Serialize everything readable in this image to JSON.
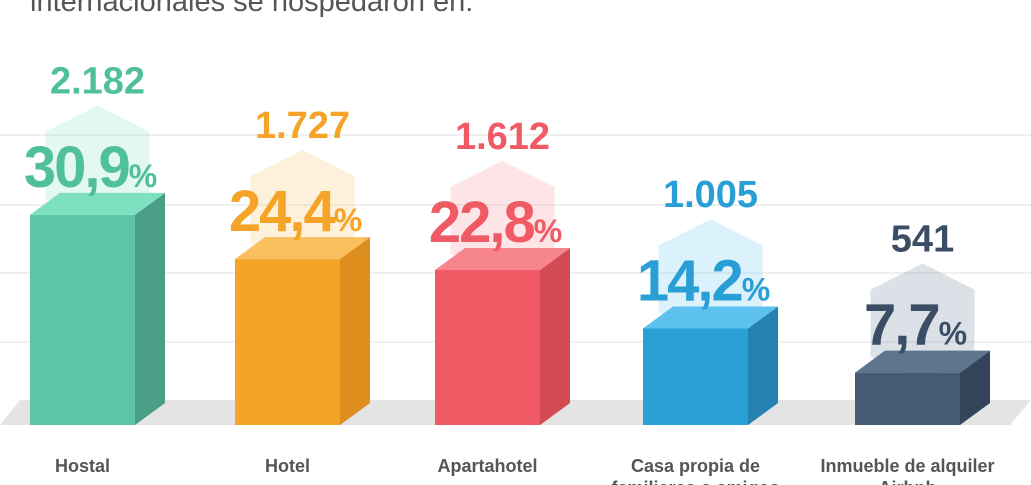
{
  "chart_data": {
    "type": "bar3d",
    "title": "internacionales se hospedaron en:",
    "categories": [
      "Hostal",
      "Hotel",
      "Apartahotel",
      "Casa propia de familiares o amigos",
      "Inmueble de alquiler Airbnb"
    ],
    "values": [
      30.9,
      24.4,
      22.8,
      14.2,
      7.7
    ],
    "value_labels": [
      "30,9",
      "24,4",
      "22,8",
      "14,2",
      "7,7"
    ],
    "unit": "%",
    "counts": [
      2182,
      1727,
      1612,
      1005,
      541
    ],
    "count_labels": [
      "2.182",
      "1.727",
      "1.612",
      "1.005",
      "541"
    ],
    "colors": [
      "#5ec4a8",
      "#f6a428",
      "#ef5a64",
      "#2a9fd6",
      "#465a74"
    ],
    "side_colors": [
      "#4a9e86",
      "#de8e1c",
      "#d14a54",
      "#2582b0",
      "#34445a"
    ],
    "top_colors": [
      "#7de0c0",
      "#fbbf5e",
      "#f7858c",
      "#5cc1ee",
      "#5e7590"
    ],
    "text_colors": [
      "#4fbf9c",
      "#f6a428",
      "#ef5a64",
      "#2a9fd6",
      "#3c4e66"
    ]
  }
}
